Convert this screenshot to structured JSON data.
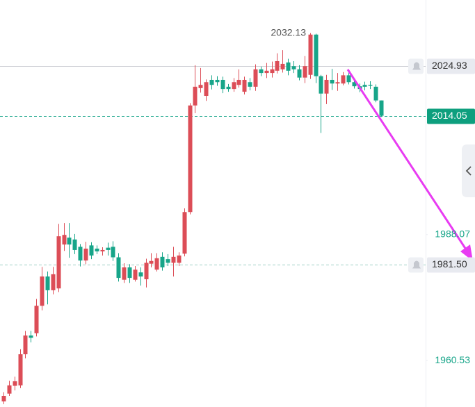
{
  "chart_data": {
    "type": "candlestick",
    "up_color": "#dc4d57",
    "down_color": "#17a589",
    "ylim": [
      1950.37,
      2039.36
    ],
    "yticks": [
      1988.07,
      1960.53
    ],
    "high_label": 2032.13,
    "price_lines": [
      {
        "value": 2024.93,
        "style": "solid",
        "color": "#c8cad0",
        "box": "#e8eaf0",
        "text_color": "#333333",
        "bell": true
      },
      {
        "value": 2014.05,
        "style": "dashed",
        "color": "#17a589",
        "box": "#0e9f7e",
        "text_color": "#ffffff",
        "bell": false
      },
      {
        "value": {
          "value": 1981.5,
          "label": "1981.50"
        },
        "style": "dashed",
        "color": "#9ccfc4",
        "box": "#e8eaf0",
        "text_color": "#333333",
        "bell": true
      }
    ],
    "open": [
      1951.6,
      1953.3,
      1955.0,
      1955.1,
      1961.9,
      1966.0,
      1966.5,
      1972.5,
      1978.9,
      1975.9,
      1976.3,
      1985.9,
      1987.4,
      1987.0,
      1985.4,
      1982.4,
      1985.7,
      1985.0,
      1984.4,
      1985.2,
      1985.4,
      1983.1,
      1978.2,
      1980.9,
      1978.2,
      1979.8,
      1978.3,
      1981.7,
      1980.4,
      1983.2,
      1982.7,
      1981.9,
      1981.9,
      1983.9,
      1993.0,
      2016.3,
      2020.1,
      2018.4,
      2021.9,
      2021.9,
      2021.9,
      2020.4,
      2019.9,
      2020.8,
      2019.3,
      2021.4,
      2020.4,
      2024.2,
      2023.4,
      2023.4,
      2023.9,
      2024.2,
      2025.7,
      2024.9,
      2024.2,
      2022.4,
      2023.0,
      2031.8,
      2022.7,
      2018.9,
      2021.9,
      2021.1,
      2021.1,
      2022.9,
      2021.4,
      2020.5,
      2020.8,
      2020.8,
      2020.4,
      2017.4
    ],
    "high": [
      1953.6,
      1956.1,
      1957.0,
      1963.0,
      1967.0,
      1967.0,
      1974.0,
      1981.0,
      1980.0,
      1981.0,
      1990.4,
      1990.6,
      1990.6,
      1988.2,
      1986.0,
      1986.5,
      1986.4,
      1985.7,
      1985.3,
      1986.3,
      1986.6,
      1984.0,
      1981.8,
      1981.6,
      1981.2,
      1980.9,
      1982.8,
      1984.0,
      1984.0,
      1984.2,
      1983.8,
      1985.4,
      1984.2,
      1993.8,
      2016.8,
      2025.1,
      2024.5,
      2022.0,
      2022.9,
      2022.7,
      2022.6,
      2021.0,
      2022.3,
      2024.2,
      2022.6,
      2022.3,
      2025.3,
      2024.8,
      2025.6,
      2025.9,
      2027.7,
      2028.4,
      2026.5,
      2026.0,
      2025.1,
      2027.1,
      2032.13,
      2032.0,
      2023.0,
      2023.0,
      2024.3,
      2023.4,
      2023.6,
      2023.5,
      2022.1,
      2021.1,
      2021.5,
      2021.6,
      2020.9,
      2017.4
    ],
    "low": [
      1951.0,
      1952.8,
      1954.0,
      1954.5,
      1961.0,
      1964.5,
      1965.8,
      1971.5,
      1972.8,
      1975.0,
      1975.5,
      1984.5,
      1983.0,
      1983.8,
      1981.1,
      1981.6,
      1982.7,
      1983.8,
      1983.5,
      1983.5,
      1982.3,
      1977.8,
      1977.5,
      1977.5,
      1977.8,
      1976.9,
      1976.5,
      1980.9,
      1980.0,
      1980.2,
      1981.2,
      1978.9,
      1981.2,
      1983.3,
      1992.5,
      2014.6,
      2019.1,
      2017.3,
      2019.8,
      2020.6,
      2019.0,
      2019.3,
      2019.3,
      2020.2,
      2018.7,
      2019.6,
      2019.5,
      2022.7,
      2022.3,
      2022.4,
      2023.3,
      2023.5,
      2022.9,
      2023.4,
      2021.8,
      2021.2,
      2022.1,
      2021.2,
      2010.3,
      2016.6,
      2019.7,
      2019.5,
      2020.7,
      2020.9,
      2020.0,
      2019.2,
      2019.6,
      2019.9,
      2017.0,
      2013.8
    ],
    "close": [
      1952.8,
      1955.1,
      1956.0,
      1961.9,
      1966.0,
      1965.5,
      1972.5,
      1978.9,
      1975.9,
      1979.4,
      1987.7,
      1988.0,
      1985.9,
      1984.7,
      1982.4,
      1985.0,
      1983.5,
      1984.4,
      1984.7,
      1984.7,
      1983.1,
      1978.6,
      1980.9,
      1978.6,
      1980.4,
      1978.9,
      1981.9,
      1982.3,
      1982.9,
      1980.9,
      1981.9,
      1983.2,
      1983.5,
      1993.0,
      2016.3,
      2020.4,
      2020.8,
      2021.4,
      2020.8,
      2021.4,
      2019.9,
      2019.9,
      2021.4,
      2021.9,
      2021.9,
      2020.4,
      2024.2,
      2023.4,
      2023.9,
      2024.2,
      2026.0,
      2025.4,
      2023.9,
      2024.2,
      2022.4,
      2024.9,
      2031.8,
      2022.7,
      2018.9,
      2021.9,
      2021.1,
      2021.4,
      2022.9,
      2021.4,
      2020.5,
      2019.9,
      2020.4,
      2020.6,
      2017.4,
      2014.05
    ]
  }
}
